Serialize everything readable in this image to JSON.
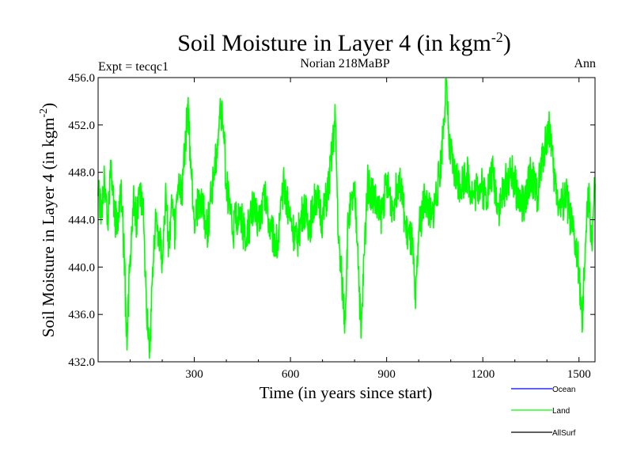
{
  "chart_data": {
    "type": "line",
    "title": "Soil Moisture in Layer 4 (in kgm",
    "title_sup": "-2",
    "title_end": ")",
    "subtitle_left": "Expt = tecqc1",
    "subtitle_center": "Norian 218MaBP",
    "subtitle_right": "Ann",
    "xlabel": "Time (in years since start)",
    "ylabel": "Soil Moisture in Layer 4 (in kgm",
    "ylabel_sup": "-2",
    "ylabel_end": ")",
    "xlim": [
      0,
      1550
    ],
    "ylim": [
      432,
      456
    ],
    "xticks": [
      300,
      600,
      900,
      1200,
      1500
    ],
    "xtick_labels": [
      "300",
      "600",
      "900",
      "1200",
      "1500"
    ],
    "yticks": [
      432,
      436,
      440,
      444,
      448,
      452,
      456
    ],
    "ytick_labels": [
      "432.0",
      "436.0",
      "440.0",
      "444.0",
      "448.0",
      "452.0",
      "456.0"
    ],
    "legend": [
      {
        "name": "Ocean",
        "color": "#0000ff"
      },
      {
        "name": "Land",
        "color": "#00ff00"
      },
      {
        "name": "AllSurf",
        "color": "#000000"
      }
    ],
    "series": [
      {
        "name": "Land",
        "color": "#00ff00",
        "x_start": 0,
        "x_step": 1,
        "anchor_points": [
          [
            0,
            446.0
          ],
          [
            10,
            445.0
          ],
          [
            20,
            447.5
          ],
          [
            30,
            443.5
          ],
          [
            40,
            449.0
          ],
          [
            50,
            445.0
          ],
          [
            60,
            443.0
          ],
          [
            70,
            447.0
          ],
          [
            80,
            442.0
          ],
          [
            90,
            433.0
          ],
          [
            100,
            441.0
          ],
          [
            110,
            446.0
          ],
          [
            120,
            444.0
          ],
          [
            130,
            447.0
          ],
          [
            140,
            445.0
          ],
          [
            150,
            438.0
          ],
          [
            160,
            432.3
          ],
          [
            170,
            440.0
          ],
          [
            180,
            444.0
          ],
          [
            190,
            443.0
          ],
          [
            200,
            441.0
          ],
          [
            210,
            446.0
          ],
          [
            220,
            442.0
          ],
          [
            230,
            445.0
          ],
          [
            240,
            443.0
          ],
          [
            250,
            447.0
          ],
          [
            260,
            446.0
          ],
          [
            270,
            450.0
          ],
          [
            280,
            453.5
          ],
          [
            290,
            448.0
          ],
          [
            300,
            444.0
          ],
          [
            320,
            446.0
          ],
          [
            340,
            443.0
          ],
          [
            360,
            448.0
          ],
          [
            370,
            450.0
          ],
          [
            380,
            453.5
          ],
          [
            390,
            452.0
          ],
          [
            400,
            447.0
          ],
          [
            420,
            443.0
          ],
          [
            440,
            445.0
          ],
          [
            460,
            442.0
          ],
          [
            480,
            445.0
          ],
          [
            500,
            444.0
          ],
          [
            520,
            446.0
          ],
          [
            540,
            443.0
          ],
          [
            560,
            442.0
          ],
          [
            580,
            447.0
          ],
          [
            600,
            444.0
          ],
          [
            620,
            442.0
          ],
          [
            640,
            445.0
          ],
          [
            660,
            443.5
          ],
          [
            680,
            446.0
          ],
          [
            700,
            444.0
          ],
          [
            720,
            447.0
          ],
          [
            740,
            452.5
          ],
          [
            750,
            442.0
          ],
          [
            760,
            439.0
          ],
          [
            770,
            435.5
          ],
          [
            780,
            444.0
          ],
          [
            800,
            446.0
          ],
          [
            810,
            442.0
          ],
          [
            820,
            434.0
          ],
          [
            830,
            441.0
          ],
          [
            840,
            447.0
          ],
          [
            860,
            446.0
          ],
          [
            880,
            444.0
          ],
          [
            900,
            447.0
          ],
          [
            920,
            445.0
          ],
          [
            940,
            448.0
          ],
          [
            960,
            443.0
          ],
          [
            980,
            442.0
          ],
          [
            990,
            436.5
          ],
          [
            1000,
            443.0
          ],
          [
            1020,
            446.0
          ],
          [
            1040,
            444.0
          ],
          [
            1060,
            447.0
          ],
          [
            1070,
            449.0
          ],
          [
            1085,
            455.7
          ],
          [
            1095,
            450.0
          ],
          [
            1110,
            448.0
          ],
          [
            1130,
            447.0
          ],
          [
            1150,
            448.0
          ],
          [
            1170,
            446.0
          ],
          [
            1190,
            447.0
          ],
          [
            1210,
            446.0
          ],
          [
            1230,
            448.0
          ],
          [
            1250,
            445.0
          ],
          [
            1270,
            447.0
          ],
          [
            1290,
            448.0
          ],
          [
            1310,
            446.0
          ],
          [
            1330,
            445.0
          ],
          [
            1350,
            448.0
          ],
          [
            1370,
            446.0
          ],
          [
            1390,
            450.0
          ],
          [
            1410,
            452.0
          ],
          [
            1420,
            448.0
          ],
          [
            1440,
            445.0
          ],
          [
            1460,
            446.0
          ],
          [
            1480,
            443.0
          ],
          [
            1500,
            440.0
          ],
          [
            1510,
            434.5
          ],
          [
            1520,
            442.0
          ],
          [
            1530,
            446.0
          ],
          [
            1540,
            442.0
          ],
          [
            1550,
            447.0
          ]
        ],
        "noise_amplitude": 1.7,
        "noise_seed": 218
      }
    ]
  }
}
